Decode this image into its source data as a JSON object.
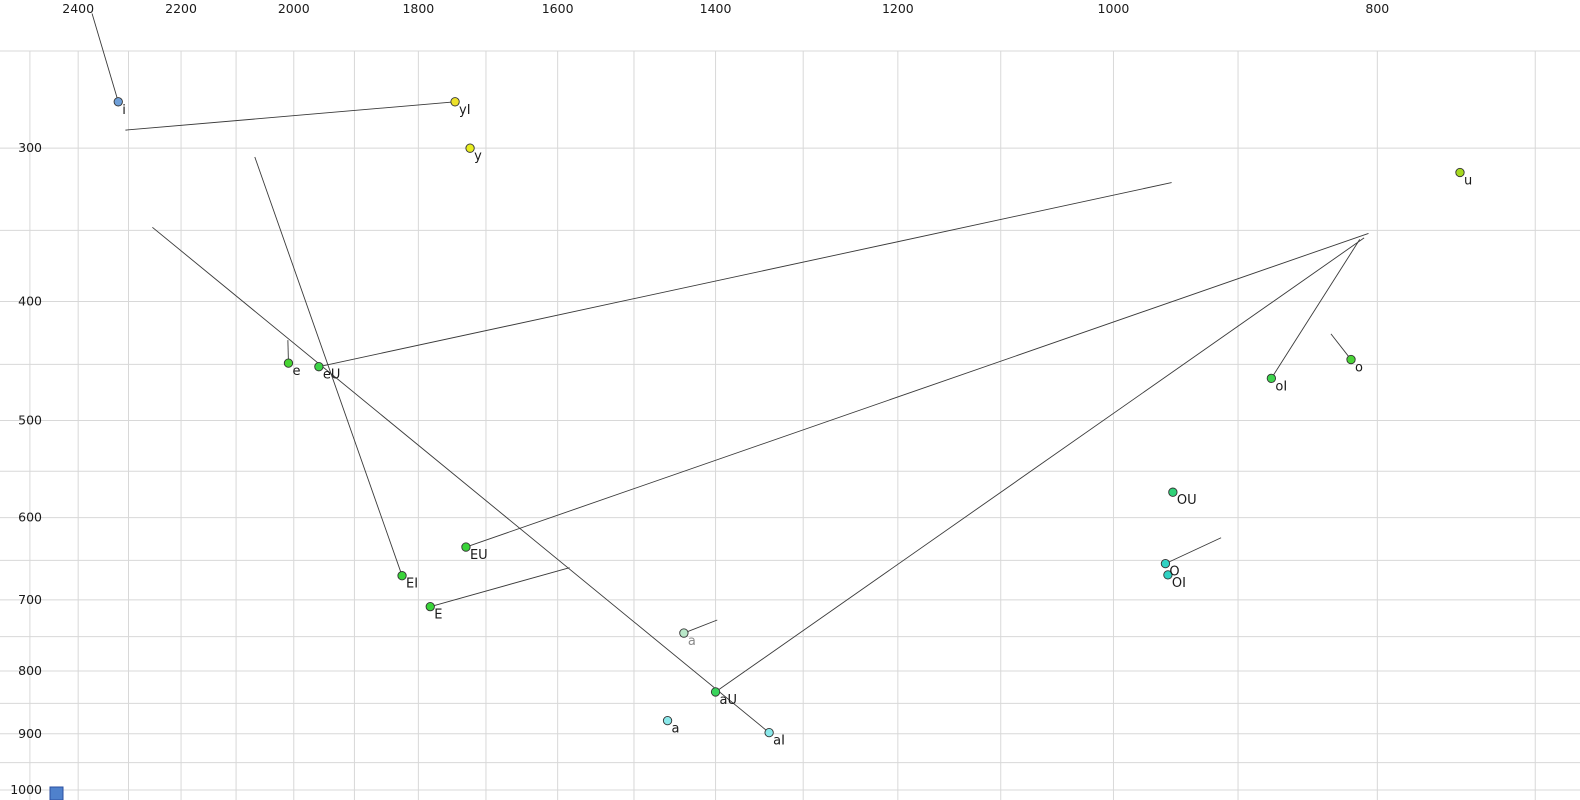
{
  "chart_data": {
    "type": "scatter",
    "title": "",
    "subtitle": "",
    "xlabel": "",
    "ylabel": "",
    "description": "Vowel formant chart (F2 horizontal reversed log scale, F1 vertical log scale) with diphthong trajectory lines",
    "legend": "none",
    "grid": true,
    "x_axis": {
      "side": "top",
      "scale": "log",
      "reversed": true,
      "tick_labels": [
        "2400",
        "2200",
        "2000",
        "1800",
        "1600",
        "1400",
        "1200",
        "1000",
        "800"
      ],
      "tick_values": [
        2400,
        2200,
        2000,
        1800,
        1600,
        1400,
        1200,
        1000,
        800
      ],
      "gridline_values": [
        2500,
        2400,
        2300,
        2200,
        2100,
        2000,
        1900,
        1800,
        1700,
        1600,
        1500,
        1400,
        1300,
        1200,
        1100,
        1000,
        900,
        800,
        700
      ],
      "domain": [
        2564,
        674
      ]
    },
    "y_axis": {
      "side": "left",
      "scale": "log",
      "reversed": false,
      "tick_labels": [
        "300",
        "400",
        "500",
        "600",
        "700",
        "800",
        "900",
        "1000"
      ],
      "tick_values": [
        300,
        400,
        500,
        600,
        700,
        800,
        900,
        1000
      ],
      "gridline_values": [
        250,
        300,
        350,
        400,
        450,
        500,
        550,
        600,
        650,
        700,
        750,
        800,
        850,
        900,
        950,
        1000
      ],
      "domain": [
        250,
        1019
      ]
    },
    "points": [
      {
        "id": "i",
        "label": "i",
        "f2": 2320,
        "f1": 275,
        "color": "#6f9fd8",
        "label_color": "#1a1a1a",
        "line_to": {
          "f2": 2372,
          "f1": 233
        }
      },
      {
        "id": "yI",
        "label": "yI",
        "f2": 1745,
        "f1": 275,
        "color": "#ede12a",
        "label_color": "#1a1a1a",
        "line_to": {
          "f2": 2306,
          "f1": 290
        }
      },
      {
        "id": "y",
        "label": "y",
        "f2": 1723,
        "f1": 300,
        "color": "#e8ed1f",
        "label_color": "#1a1a1a",
        "line_to": null
      },
      {
        "id": "u",
        "label": "u",
        "f2": 746,
        "f1": 314,
        "color": "#a5d81f",
        "label_color": "#1a1a1a",
        "line_to": null
      },
      {
        "id": "e",
        "label": "e",
        "f2": 2009,
        "f1": 449,
        "color": "#46d432",
        "label_color": "#1a1a1a",
        "line_to": {
          "f2": 2010,
          "f1": 430
        }
      },
      {
        "id": "eU",
        "label": "eU",
        "f2": 1958,
        "f1": 452,
        "color": "#3cd446",
        "label_color": "#1a1a1a",
        "line_to": {
          "f2": 952,
          "f1": 320
        }
      },
      {
        "id": "o",
        "label": "o",
        "f2": 818,
        "f1": 446,
        "color": "#4ad437",
        "label_color": "#1a1a1a",
        "line_to": {
          "f2": 832,
          "f1": 425
        }
      },
      {
        "id": "oI",
        "label": "oI",
        "f2": 875,
        "f1": 462,
        "color": "#3dd44d",
        "label_color": "#1a1a1a",
        "line_to": {
          "f2": 812,
          "f1": 356
        }
      },
      {
        "id": "OU",
        "label": "OU",
        "f2": 951,
        "f1": 572,
        "color": "#30d278",
        "label_color": "#1a1a1a",
        "line_to": null
      },
      {
        "id": "EU",
        "label": "EU",
        "f2": 1729,
        "f1": 634,
        "color": "#39d439",
        "label_color": "#1a1a1a",
        "line_to": {
          "f2": 806,
          "f1": 352
        }
      },
      {
        "id": "EI",
        "label": "EI",
        "f2": 1825,
        "f1": 669,
        "color": "#39d439",
        "label_color": "#1a1a1a",
        "line_to": {
          "f2": 2067,
          "f1": 305
        }
      },
      {
        "id": "O",
        "label": "O",
        "f2": 957,
        "f1": 654,
        "color": "#2fd2c3",
        "label_color": "#1a1a1a",
        "line_to": {
          "f2": 913,
          "f1": 623
        }
      },
      {
        "id": "OI",
        "label": "OI",
        "f2": 955,
        "f1": 668,
        "color": "#2fd2c3",
        "label_color": "#1a1a1a",
        "line_to": null
      },
      {
        "id": "E",
        "label": "E",
        "f2": 1782,
        "f1": 709,
        "color": "#39d439",
        "label_color": "#1a1a1a",
        "line_to": {
          "f2": 1584,
          "f1": 659
        }
      },
      {
        "id": "a-mid",
        "label": "a",
        "f2": 1438,
        "f1": 745,
        "color": "#b9e8c9",
        "label_color": "#8a8a8a",
        "line_to": {
          "f2": 1398,
          "f1": 727
        }
      },
      {
        "id": "aU",
        "label": "aU",
        "f2": 1400,
        "f1": 832,
        "color": "#39d45b",
        "label_color": "#1a1a1a",
        "line_to": {
          "f2": 809,
          "f1": 355
        }
      },
      {
        "id": "a-low",
        "label": "a",
        "f2": 1458,
        "f1": 878,
        "color": "#8ae8ea",
        "label_color": "#1a1a1a",
        "line_to": null
      },
      {
        "id": "aI",
        "label": "aI",
        "f2": 1338,
        "f1": 898,
        "color": "#8ae8ea",
        "label_color": "#1a1a1a",
        "line_to": {
          "f2": 2254,
          "f1": 348
        }
      }
    ],
    "corner_marker": {
      "color": "#4f81cc"
    }
  },
  "colors": {
    "background": "#ffffff",
    "grid": "#d8d8d8",
    "trajectory_line": "#3a3a3a",
    "marker_stroke": "#333333",
    "tick_text": "#1a1a1a"
  }
}
